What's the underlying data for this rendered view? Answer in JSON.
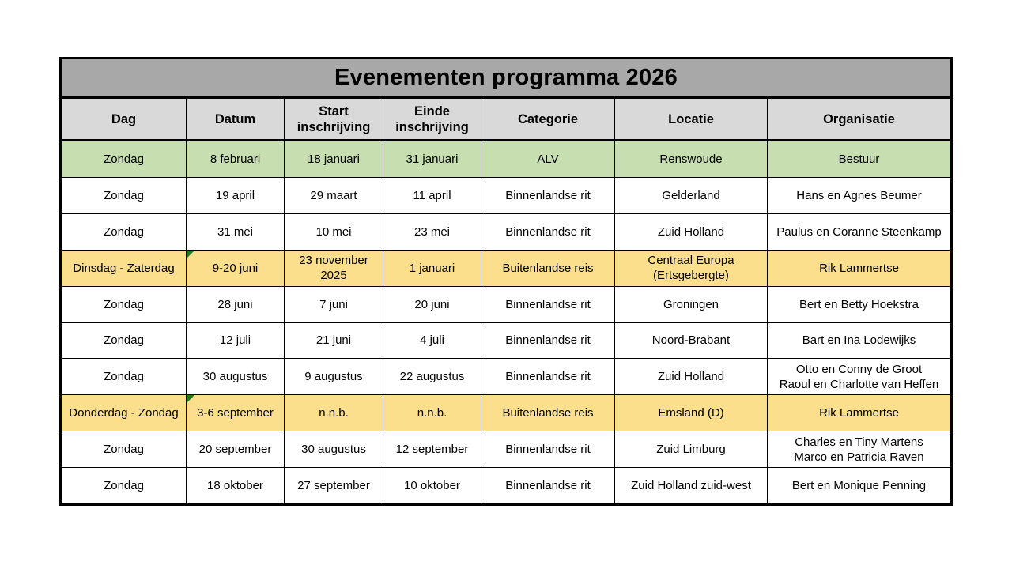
{
  "title": "Evenementen programma 2026",
  "colors": {
    "title_bg": "#a8a8a8",
    "header_bg": "#d9d9d9",
    "row_green": "#c6deb0",
    "row_yellow": "#fbdf8c",
    "border": "#000000",
    "flag_green": "#1f7a1f"
  },
  "table": {
    "columns": [
      "Dag",
      "Datum",
      "Start inschrijving",
      "Einde inschrijving",
      "Categorie",
      "Locatie",
      "Organisatie"
    ],
    "column_keys": [
      "dag",
      "datum",
      "start",
      "einde",
      "categorie",
      "locatie",
      "organisatie"
    ],
    "rows": [
      {
        "dag": "Zondag",
        "datum": "8 februari",
        "start": "18 januari",
        "einde": "31 januari",
        "categorie": "ALV",
        "locatie": "Renswoude",
        "organisatie": "Bestuur",
        "highlight": "green",
        "flag": false
      },
      {
        "dag": "Zondag",
        "datum": "19 april",
        "start": "29 maart",
        "einde": "11 april",
        "categorie": "Binnenlandse rit",
        "locatie": "Gelderland",
        "organisatie": "Hans en Agnes Beumer",
        "highlight": "none",
        "flag": false
      },
      {
        "dag": "Zondag",
        "datum": "31 mei",
        "start": "10 mei",
        "einde": "23 mei",
        "categorie": "Binnenlandse rit",
        "locatie": "Zuid Holland",
        "organisatie": "Paulus en Coranne Steenkamp",
        "highlight": "none",
        "flag": false
      },
      {
        "dag": "Dinsdag - Zaterdag",
        "datum": "9-20 juni",
        "start": "23 november 2025",
        "einde": "1 januari",
        "categorie": "Buitenlandse reis",
        "locatie": "Centraal Europa\n(Ertsgebergte)",
        "organisatie": "Rik Lammertse",
        "highlight": "yellow",
        "flag": true
      },
      {
        "dag": "Zondag",
        "datum": "28 juni",
        "start": "7 juni",
        "einde": "20 juni",
        "categorie": "Binnenlandse rit",
        "locatie": "Groningen",
        "organisatie": "Bert en Betty Hoekstra",
        "highlight": "none",
        "flag": false
      },
      {
        "dag": "Zondag",
        "datum": "12 juli",
        "start": "21 juni",
        "einde": "4 juli",
        "categorie": "Binnenlandse rit",
        "locatie": "Noord-Brabant",
        "organisatie": "Bart en Ina Lodewijks",
        "highlight": "none",
        "flag": false
      },
      {
        "dag": "Zondag",
        "datum": "30 augustus",
        "start": "9 augustus",
        "einde": "22 augustus",
        "categorie": "Binnenlandse rit",
        "locatie": "Zuid Holland",
        "organisatie": "Otto en Conny de Groot\nRaoul en Charlotte van Heffen",
        "highlight": "none",
        "flag": false
      },
      {
        "dag": "Donderdag - Zondag",
        "datum": "3-6 september",
        "start": "n.n.b.",
        "einde": "n.n.b.",
        "categorie": "Buitenlandse reis",
        "locatie": "Emsland (D)",
        "organisatie": "Rik Lammertse",
        "highlight": "yellow",
        "flag": true
      },
      {
        "dag": "Zondag",
        "datum": "20 september",
        "start": "30 augustus",
        "einde": "12 september",
        "categorie": "Binnenlandse rit",
        "locatie": "Zuid Limburg",
        "organisatie": "Charles en Tiny Martens\nMarco en Patricia Raven",
        "highlight": "none",
        "flag": false
      },
      {
        "dag": "Zondag",
        "datum": "18 oktober",
        "start": "27 september",
        "einde": "10 oktober",
        "categorie": "Binnenlandse rit",
        "locatie": "Zuid Holland zuid-west",
        "organisatie": "Bert en Monique Penning",
        "highlight": "none",
        "flag": false
      }
    ]
  }
}
